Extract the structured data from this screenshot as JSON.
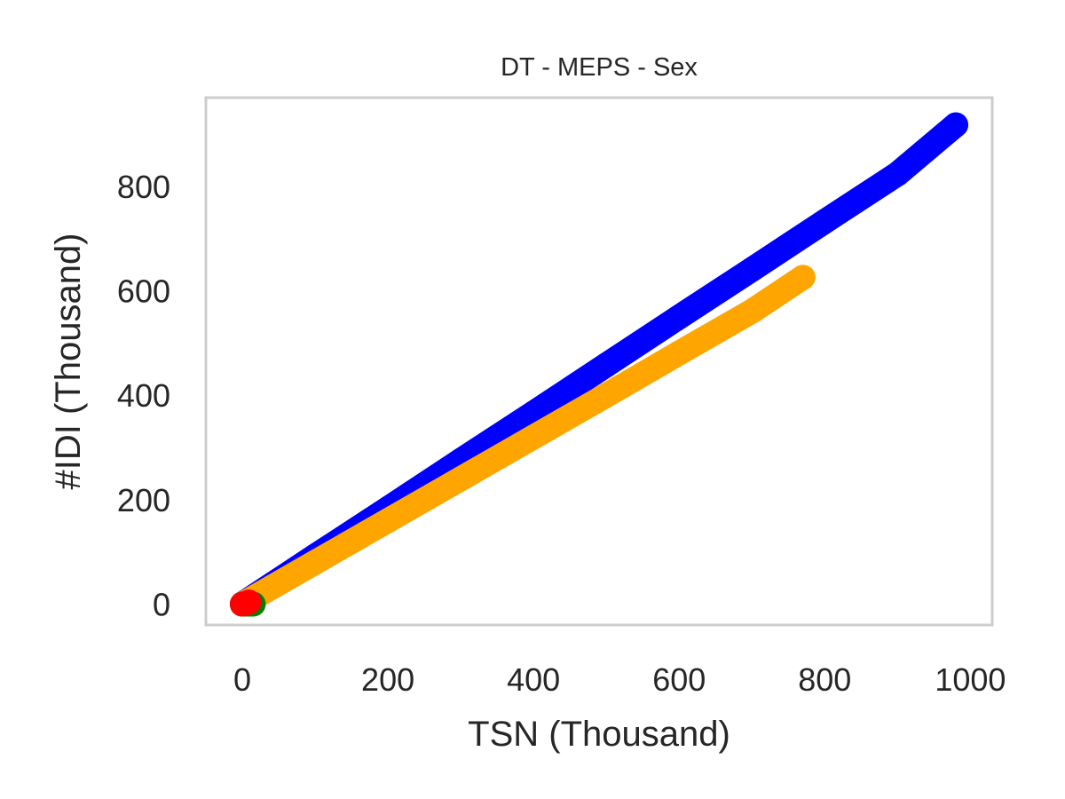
{
  "chart_data": {
    "type": "scatter",
    "title": "DT - MEPS - Sex",
    "xlabel": "TSN (Thousand)",
    "ylabel": "#IDI (Thousand)",
    "xlim": [
      -50,
      1030
    ],
    "ylim": [
      -40,
      970
    ],
    "grid": false,
    "legend": "none",
    "x_ticks": [
      {
        "value": 0,
        "label": "0"
      },
      {
        "value": 200,
        "label": "200"
      },
      {
        "value": 400,
        "label": "400"
      },
      {
        "value": 600,
        "label": "600"
      },
      {
        "value": 800,
        "label": "800"
      },
      {
        "value": 1000,
        "label": "1000"
      }
    ],
    "y_ticks": [
      {
        "value": 0,
        "label": "0"
      },
      {
        "value": 200,
        "label": "200"
      },
      {
        "value": 400,
        "label": "400"
      },
      {
        "value": 600,
        "label": "600"
      },
      {
        "value": 800,
        "label": "800"
      }
    ],
    "series": [
      {
        "color": "#0000ff",
        "x": [
          0,
          100,
          200,
          300,
          400,
          500,
          600,
          700,
          800,
          900,
          980
        ],
        "y": [
          0,
          92,
          183,
          275,
          366,
          458,
          550,
          641,
          733,
          824,
          918
        ]
      },
      {
        "color": "#ffa500",
        "x": [
          0,
          100,
          200,
          300,
          400,
          500,
          600,
          700,
          770
        ],
        "y": [
          0,
          80,
          160,
          240,
          320,
          400,
          481,
          561,
          626
        ]
      },
      {
        "color": "#008000",
        "x": [
          0,
          5,
          10,
          15
        ],
        "y": [
          0,
          0,
          0,
          0
        ]
      },
      {
        "color": "#ff0000",
        "x": [
          0,
          3,
          6,
          9
        ],
        "y": [
          0,
          1,
          2,
          4
        ]
      }
    ]
  }
}
